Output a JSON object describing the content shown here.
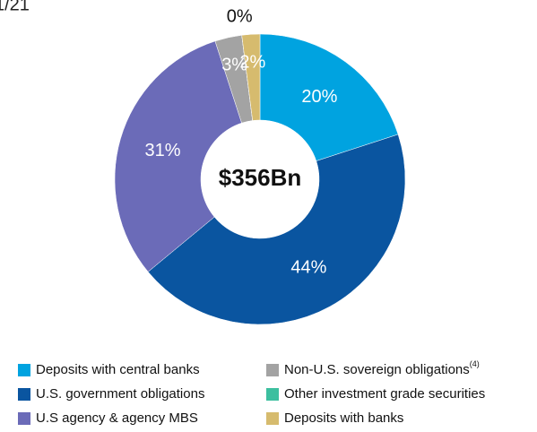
{
  "chart_data": {
    "type": "donut",
    "corner_text": "1/21",
    "center_label": "$356Bn",
    "series": [
      {
        "name": "Deposits with central banks",
        "color": "#00a3e0",
        "value": 20,
        "value_label": "20%"
      },
      {
        "name": "U.S. government obligations",
        "color": "#0a55a0",
        "value": 44,
        "value_label": "44%"
      },
      {
        "name": "U.S agency & agency MBS",
        "color": "#6b6bb8",
        "value": 31,
        "value_label": "31%"
      },
      {
        "name": "Non-U.S. sovereign obligations",
        "superscript": "(4)",
        "color": "#a3a3a3",
        "value": 3,
        "value_label": "3%"
      },
      {
        "name": "Other investment grade securities",
        "color": "#3cbf9f",
        "value": 0,
        "value_label": "0%"
      },
      {
        "name": "Deposits with banks",
        "color": "#d6bb6e",
        "value": 2,
        "value_label": "2%"
      }
    ]
  }
}
